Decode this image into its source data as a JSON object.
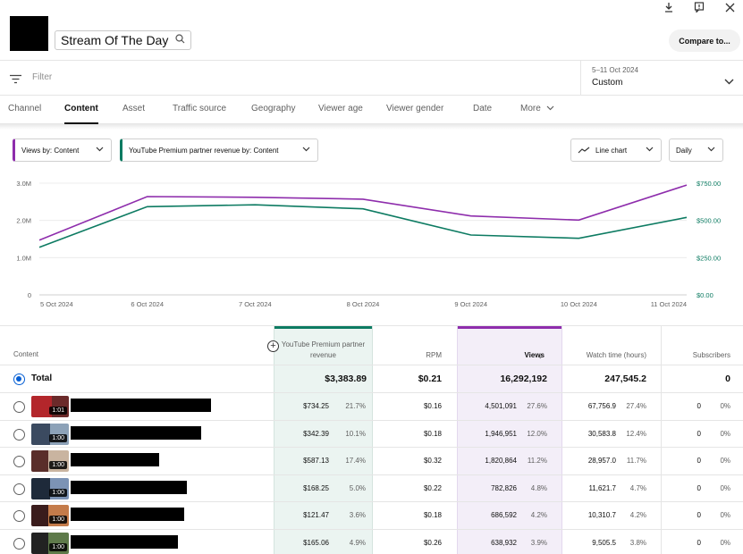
{
  "header": {
    "channel_title": "Stream Of The Day",
    "compare_label": "Compare to..."
  },
  "filter": {
    "placeholder": "Filter"
  },
  "date_range": {
    "range": "5–11 Oct 2024",
    "label": "Custom"
  },
  "tabs": [
    {
      "label": "Channel"
    },
    {
      "label": "Content"
    },
    {
      "label": "Asset"
    },
    {
      "label": "Traffic source"
    },
    {
      "label": "Geography"
    },
    {
      "label": "Viewer age"
    },
    {
      "label": "Viewer gender"
    },
    {
      "label": "Date"
    },
    {
      "label": "More"
    }
  ],
  "chips": {
    "views": "Views by: Content",
    "revenue": "YouTube Premium partner revenue by: Content",
    "chart_type": "Line chart",
    "granularity": "Daily"
  },
  "colors": {
    "views": "#8e2dac",
    "revenue": "#0d7b62",
    "accent": "#065fd4"
  },
  "chart_data": {
    "type": "line",
    "x": [
      "5 Oct 2024",
      "6 Oct 2024",
      "7 Oct 2024",
      "8 Oct 2024",
      "9 Oct 2024",
      "10 Oct 2024",
      "11 Oct 2024"
    ],
    "left_ticks": [
      "0",
      "1.0M",
      "2.0M",
      "3.0M"
    ],
    "right_ticks": [
      "$0.00",
      "$250.00",
      "$500.00",
      "$750.00"
    ],
    "ylim_left": [
      0,
      3000000
    ],
    "ylim_right": [
      0,
      750
    ],
    "series": [
      {
        "axis": "left",
        "color": "#8e2dac",
        "values": [
          1470000,
          2640000,
          2620000,
          2570000,
          2120000,
          2010000,
          2950000
        ]
      },
      {
        "axis": "right",
        "color": "#0d7b62",
        "values": [
          320,
          592,
          605,
          578,
          402,
          380,
          520
        ]
      }
    ]
  },
  "table": {
    "headers": {
      "content": "Content",
      "revenue": "YouTube Premium partner revenue",
      "rpm": "RPM",
      "views": "Views",
      "watch_time": "Watch time (hours)",
      "subscribers": "Subscribers"
    },
    "total": {
      "label": "Total",
      "revenue": "$3,383.89",
      "rpm": "$0.21",
      "views": "16,292,192",
      "watch_time": "247,545.2",
      "subscribers": "0"
    },
    "rows": [
      {
        "duration": "1:01",
        "revenue": "$734.25",
        "revenue_pct": "21.7%",
        "rpm": "$0.16",
        "views": "4,501,091",
        "views_pct": "27.6%",
        "watch_time": "67,756.9",
        "watch_pct": "27.4%",
        "subscribers": "0",
        "subs_pct": "0%"
      },
      {
        "duration": "1:00",
        "revenue": "$342.39",
        "revenue_pct": "10.1%",
        "rpm": "$0.18",
        "views": "1,946,951",
        "views_pct": "12.0%",
        "watch_time": "30,583.8",
        "watch_pct": "12.4%",
        "subscribers": "0",
        "subs_pct": "0%"
      },
      {
        "duration": "1:00",
        "revenue": "$587.13",
        "revenue_pct": "17.4%",
        "rpm": "$0.32",
        "views": "1,820,864",
        "views_pct": "11.2%",
        "watch_time": "28,957.0",
        "watch_pct": "11.7%",
        "subscribers": "0",
        "subs_pct": "0%"
      },
      {
        "duration": "1:00",
        "revenue": "$168.25",
        "revenue_pct": "5.0%",
        "rpm": "$0.22",
        "views": "782,826",
        "views_pct": "4.8%",
        "watch_time": "11,621.7",
        "watch_pct": "4.7%",
        "subscribers": "0",
        "subs_pct": "0%"
      },
      {
        "duration": "1:00",
        "revenue": "$121.47",
        "revenue_pct": "3.6%",
        "rpm": "$0.18",
        "views": "686,592",
        "views_pct": "4.2%",
        "watch_time": "10,310.7",
        "watch_pct": "4.2%",
        "subscribers": "0",
        "subs_pct": "0%"
      },
      {
        "duration": "1:00",
        "revenue": "$165.06",
        "revenue_pct": "4.9%",
        "rpm": "$0.26",
        "views": "638,932",
        "views_pct": "3.9%",
        "watch_time": "9,505.5",
        "watch_pct": "3.8%",
        "subscribers": "0",
        "subs_pct": "0%"
      }
    ]
  }
}
